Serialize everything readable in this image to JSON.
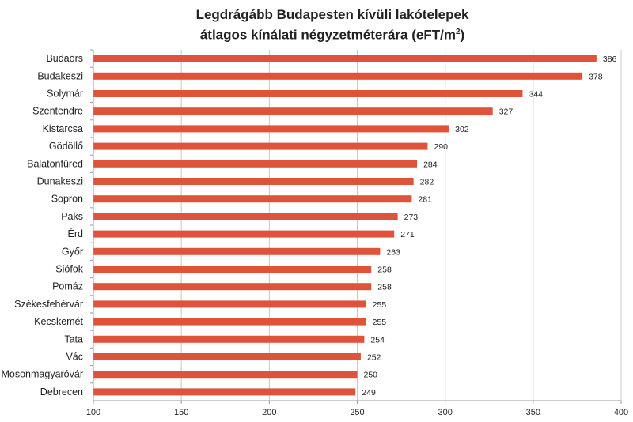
{
  "chart_data": {
    "type": "bar",
    "orientation": "horizontal",
    "title_line1": "Legdrágább Budapesten kívüli lakótelepek",
    "title_line2": "átlagos kínálati négyzetméterára (eFT/m",
    "title_sup": "2",
    "title_end": ")",
    "categories": [
      "Budaörs",
      "Budakeszi",
      "Solymár",
      "Szentendre",
      "Kistarcsa",
      "Gödöllő",
      "Balatonfüred",
      "Dunakeszi",
      "Sopron",
      "Paks",
      "Érd",
      "Győr",
      "Siófok",
      "Pomáz",
      "Székesfehérvár",
      "Kecskemét",
      "Tata",
      "Vác",
      "Mosonmagyaróvár",
      "Debrecen"
    ],
    "values": [
      386,
      378,
      344,
      327,
      302,
      290,
      284,
      282,
      281,
      273,
      271,
      263,
      258,
      258,
      255,
      255,
      254,
      252,
      250,
      249
    ],
    "xlim": [
      100,
      400
    ],
    "xticks": [
      100,
      150,
      200,
      250,
      300,
      350,
      400
    ],
    "bar_color": "#e0533b",
    "grid": true,
    "grid_axis": "x",
    "data_labels": true
  }
}
